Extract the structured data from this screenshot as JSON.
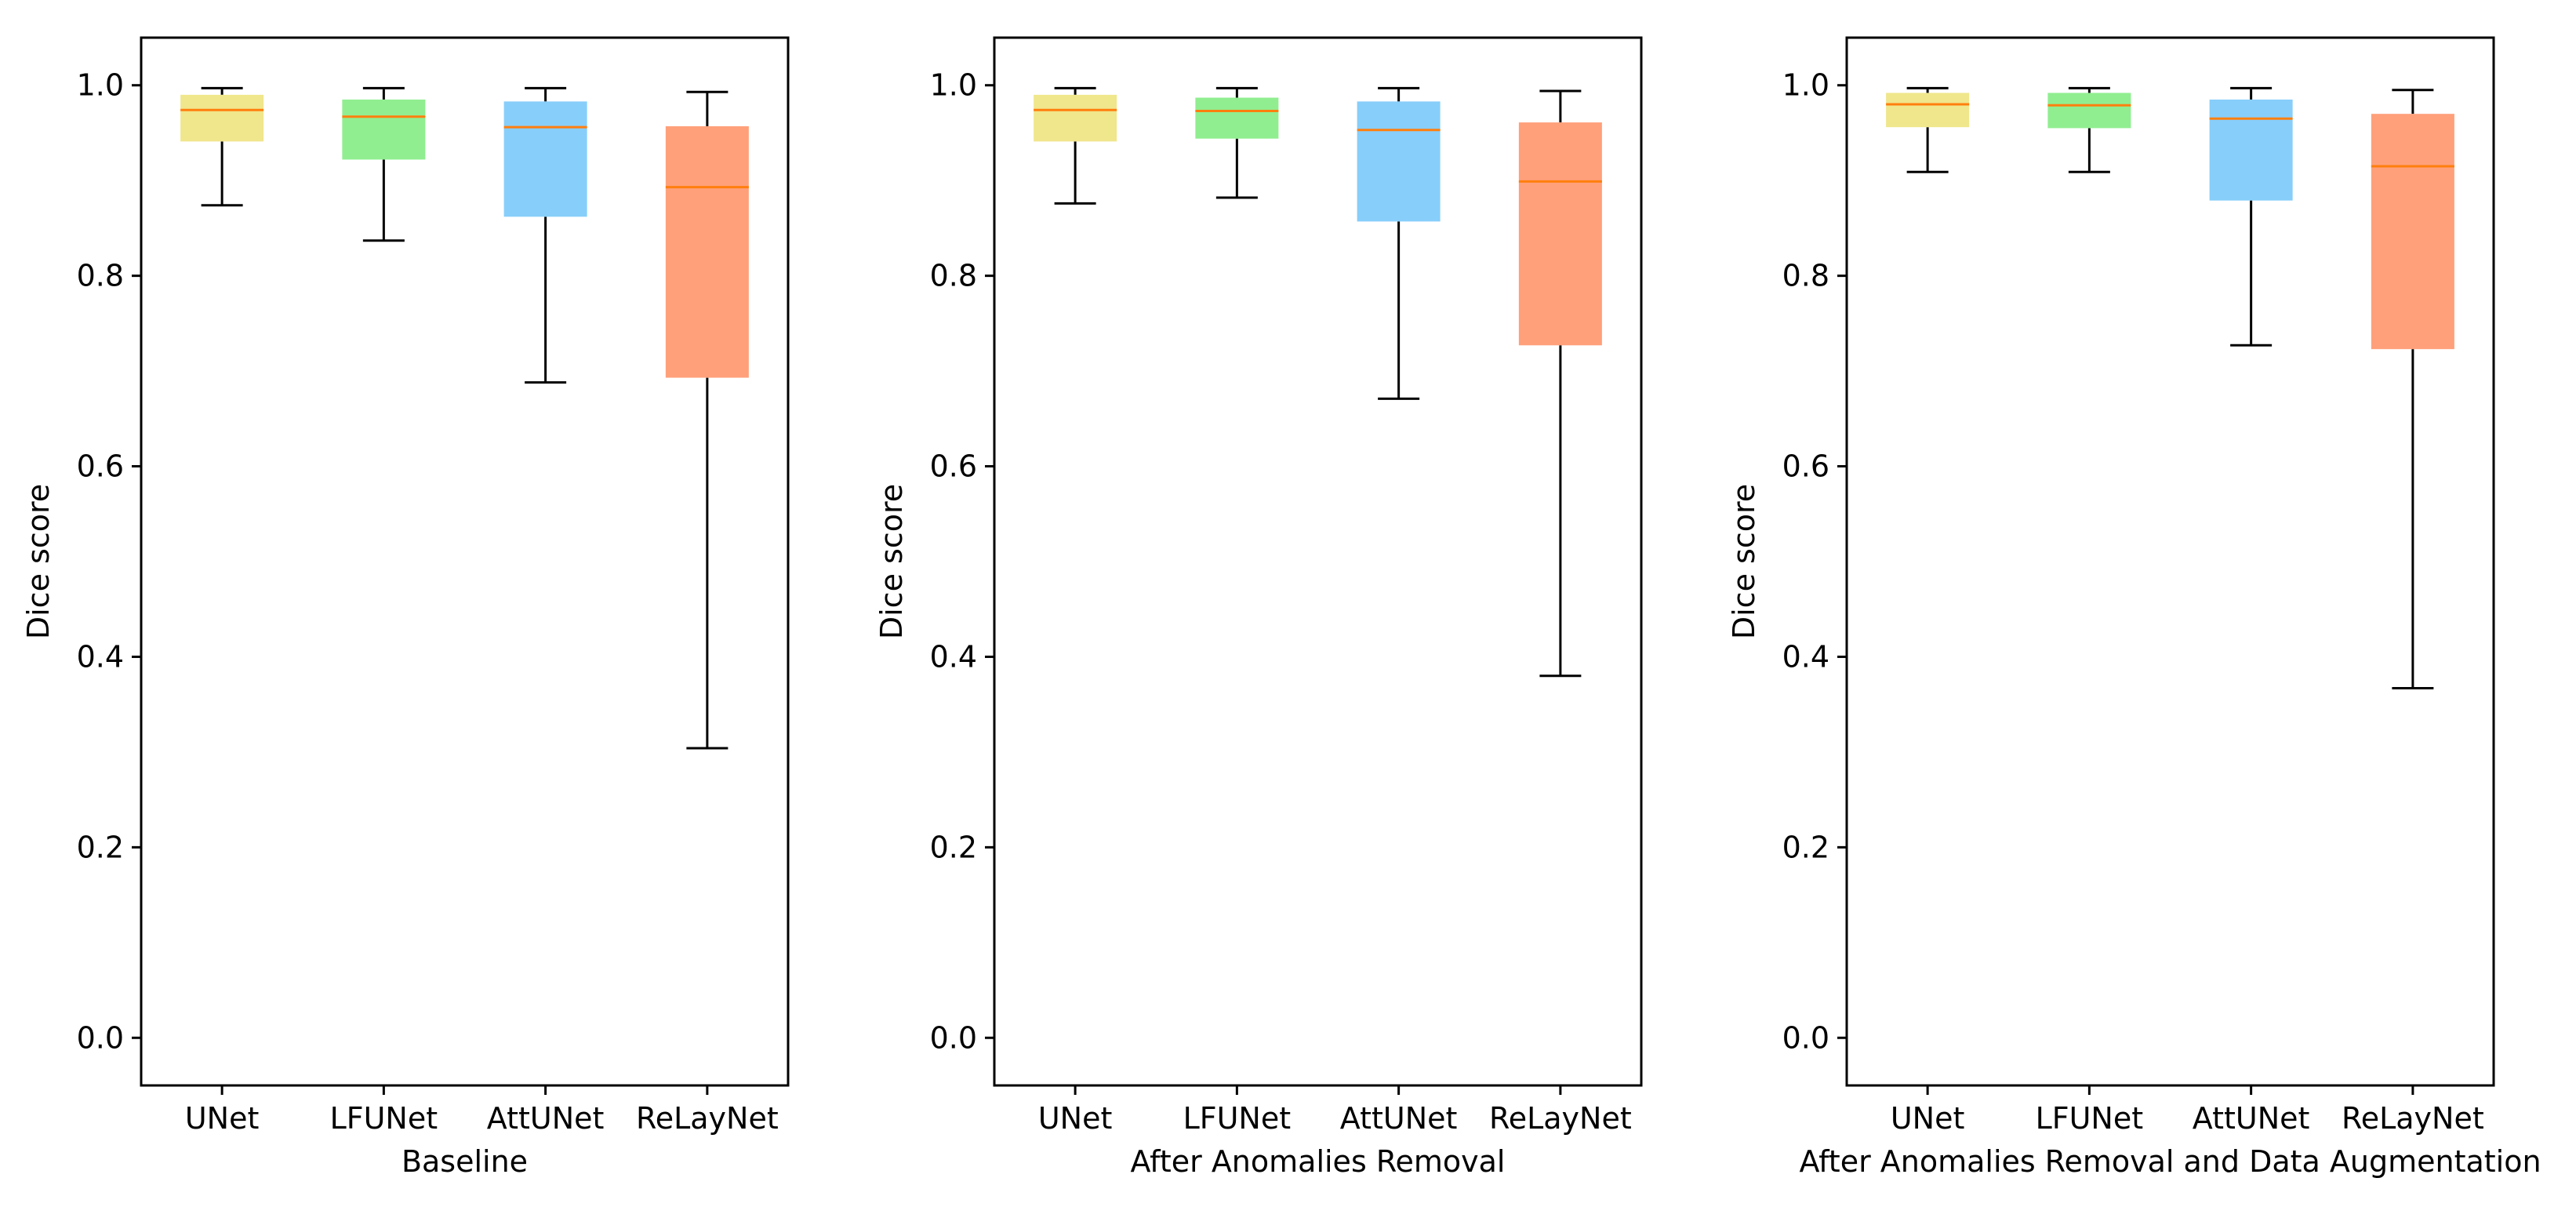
{
  "figure": {
    "style": {
      "median_color": "#ff7f0e",
      "whisker_color": "#000000",
      "axes_edge_color": "#000000",
      "background": "#ffffff"
    }
  },
  "chart_data": [
    {
      "type": "boxplot",
      "title": "",
      "xlabel": "Baseline",
      "ylabel": "Dice score",
      "ylim": [
        -0.05,
        1.05
      ],
      "yticks": [
        0.0,
        0.2,
        0.4,
        0.6,
        0.8,
        1.0
      ],
      "ytick_labels": [
        "0.0",
        "0.2",
        "0.4",
        "0.6",
        "0.8",
        "1.0"
      ],
      "grid": false,
      "categories": [
        "UNet",
        "LFUNet",
        "AttUNet",
        "ReLayNet"
      ],
      "colors": [
        "#f0e68c",
        "#90ee90",
        "#87cefa",
        "#ffa07a"
      ],
      "boxes": [
        {
          "whisker_low": 0.874,
          "q1": 0.941,
          "median": 0.974,
          "q3": 0.99,
          "whisker_high": 0.997
        },
        {
          "whisker_low": 0.837,
          "q1": 0.922,
          "median": 0.967,
          "q3": 0.985,
          "whisker_high": 0.997
        },
        {
          "whisker_low": 0.688,
          "q1": 0.862,
          "median": 0.956,
          "q3": 0.983,
          "whisker_high": 0.997
        },
        {
          "whisker_low": 0.304,
          "q1": 0.693,
          "median": 0.893,
          "q3": 0.957,
          "whisker_high": 0.993
        }
      ]
    },
    {
      "type": "boxplot",
      "title": "",
      "xlabel": "After Anomalies Removal",
      "ylabel": "Dice score",
      "ylim": [
        -0.05,
        1.05
      ],
      "yticks": [
        0.0,
        0.2,
        0.4,
        0.6,
        0.8,
        1.0
      ],
      "ytick_labels": [
        "0.0",
        "0.2",
        "0.4",
        "0.6",
        "0.8",
        "1.0"
      ],
      "grid": false,
      "categories": [
        "UNet",
        "LFUNet",
        "AttUNet",
        "ReLayNet"
      ],
      "colors": [
        "#f0e68c",
        "#90ee90",
        "#87cefa",
        "#ffa07a"
      ],
      "boxes": [
        {
          "whisker_low": 0.876,
          "q1": 0.941,
          "median": 0.974,
          "q3": 0.99,
          "whisker_high": 0.997
        },
        {
          "whisker_low": 0.882,
          "q1": 0.944,
          "median": 0.973,
          "q3": 0.987,
          "whisker_high": 0.997
        },
        {
          "whisker_low": 0.671,
          "q1": 0.857,
          "median": 0.953,
          "q3": 0.983,
          "whisker_high": 0.997
        },
        {
          "whisker_low": 0.38,
          "q1": 0.727,
          "median": 0.899,
          "q3": 0.961,
          "whisker_high": 0.994
        }
      ]
    },
    {
      "type": "boxplot",
      "title": "",
      "xlabel": "After Anomalies Removal and Data Augmentation",
      "ylabel": "Dice score",
      "ylim": [
        -0.05,
        1.05
      ],
      "yticks": [
        0.0,
        0.2,
        0.4,
        0.6,
        0.8,
        1.0
      ],
      "ytick_labels": [
        "0.0",
        "0.2",
        "0.4",
        "0.6",
        "0.8",
        "1.0"
      ],
      "grid": false,
      "categories": [
        "UNet",
        "LFUNet",
        "AttUNet",
        "ReLayNet"
      ],
      "colors": [
        "#f0e68c",
        "#90ee90",
        "#87cefa",
        "#ffa07a"
      ],
      "boxes": [
        {
          "whisker_low": 0.909,
          "q1": 0.956,
          "median": 0.98,
          "q3": 0.992,
          "whisker_high": 0.997
        },
        {
          "whisker_low": 0.909,
          "q1": 0.955,
          "median": 0.979,
          "q3": 0.992,
          "whisker_high": 0.997
        },
        {
          "whisker_low": 0.727,
          "q1": 0.879,
          "median": 0.965,
          "q3": 0.985,
          "whisker_high": 0.997
        },
        {
          "whisker_low": 0.367,
          "q1": 0.723,
          "median": 0.915,
          "q3": 0.97,
          "whisker_high": 0.995
        }
      ]
    }
  ]
}
